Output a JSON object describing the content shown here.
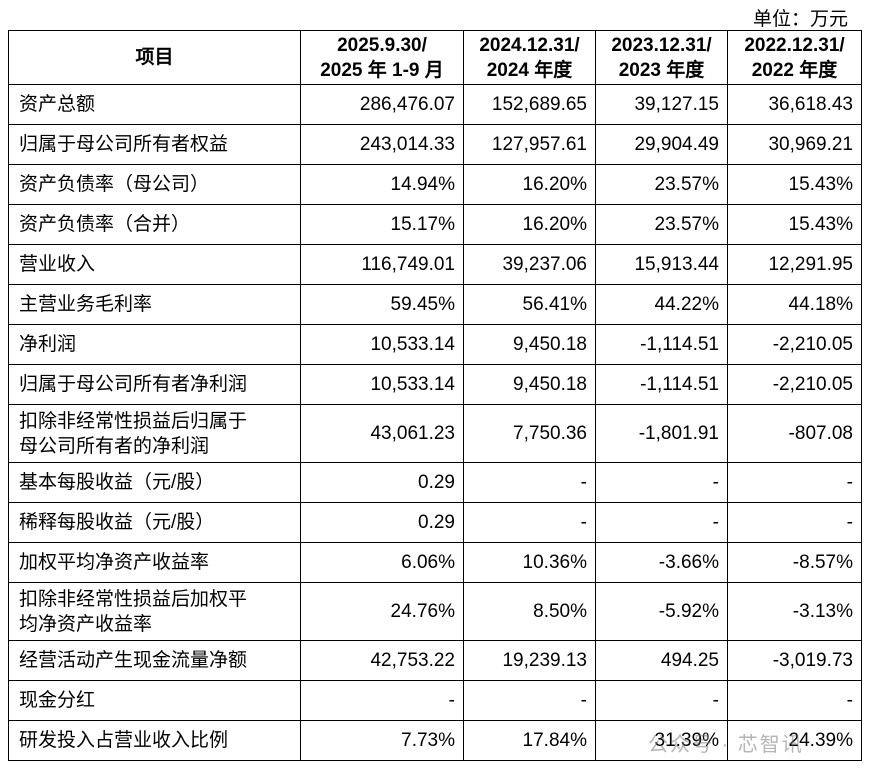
{
  "unit": "单位：万元",
  "table": {
    "header": [
      "项目",
      [
        "2025.9.30/",
        "2025 年 1-9 月"
      ],
      [
        "2024.12.31/",
        "2024 年度"
      ],
      [
        "2023.12.31/",
        "2023 年度"
      ],
      [
        "2022.12.31/",
        "2022 年度"
      ]
    ],
    "rows": [
      [
        "资产总额",
        "286,476.07",
        "152,689.65",
        "39,127.15",
        "36,618.43"
      ],
      [
        "归属于母公司所有者权益",
        "243,014.33",
        "127,957.61",
        "29,904.49",
        "30,969.21"
      ],
      [
        "资产负债率（母公司）",
        "14.94%",
        "16.20%",
        "23.57%",
        "15.43%"
      ],
      [
        "资产负债率（合并）",
        "15.17%",
        "16.20%",
        "23.57%",
        "15.43%"
      ],
      [
        "营业收入",
        "116,749.01",
        "39,237.06",
        "15,913.44",
        "12,291.95"
      ],
      [
        "主营业务毛利率",
        "59.45%",
        "56.41%",
        "44.22%",
        "44.18%"
      ],
      [
        "净利润",
        "10,533.14",
        "9,450.18",
        "-1,114.51",
        "-2,210.05"
      ],
      [
        "归属于母公司所有者净利润",
        "10,533.14",
        "9,450.18",
        "-1,114.51",
        "-2,210.05"
      ],
      [
        "扣除非经常性损益后归属于母公司所有者的净利润",
        "43,061.23",
        "7,750.36",
        "-1,801.91",
        "-807.08"
      ],
      [
        "基本每股收益（元/股）",
        "0.29",
        "-",
        "-",
        "-"
      ],
      [
        "稀释每股收益（元/股）",
        "0.29",
        "-",
        "-",
        "-"
      ],
      [
        "加权平均净资产收益率",
        "6.06%",
        "10.36%",
        "-3.66%",
        "-8.57%"
      ],
      [
        "扣除非经常性损益后加权平均净资产收益率",
        "24.76%",
        "8.50%",
        "-5.92%",
        "-3.13%"
      ],
      [
        "经营活动产生现金流量净额",
        "42,753.22",
        "19,239.13",
        "494.25",
        "-3,019.73"
      ],
      [
        "现金分红",
        "-",
        "-",
        "-",
        "-"
      ],
      [
        "研发投入占营业收入比例",
        "7.73%",
        "17.84%",
        "31.39%",
        "24.39%"
      ]
    ]
  },
  "watermark": "公众号 · 芯智讯"
}
